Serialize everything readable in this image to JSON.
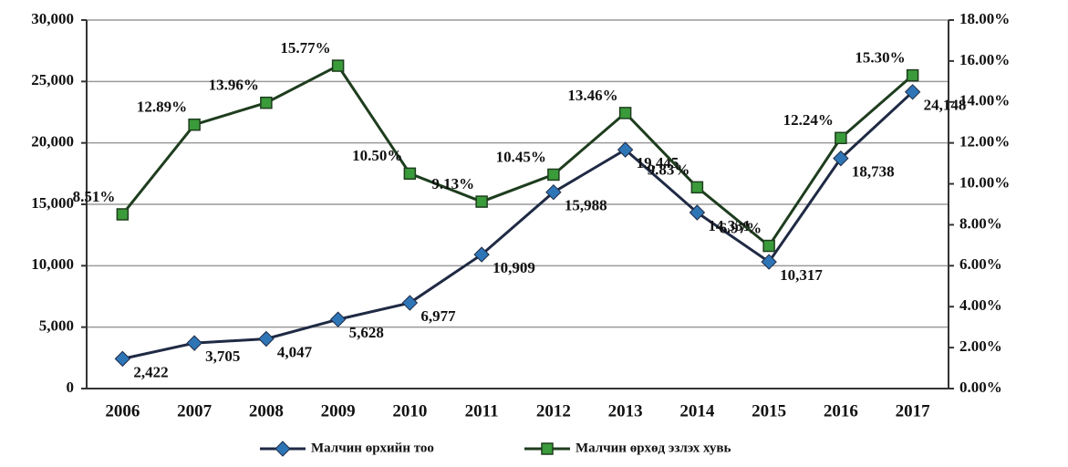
{
  "chart_data": {
    "type": "line",
    "categories": [
      "2006",
      "2007",
      "2008",
      "2009",
      "2010",
      "2011",
      "2012",
      "2013",
      "2014",
      "2015",
      "2016",
      "2017"
    ],
    "series": [
      {
        "name": "Малчин өрхийн тоо",
        "color": "#1f2a44",
        "marker_color": "#2e75b6",
        "marker": "diamond",
        "values": [
          2422,
          3705,
          4047,
          5628,
          6977,
          10909,
          15988,
          19445,
          14331,
          10317,
          18738,
          24148
        ],
        "value_labels": [
          "2,422",
          "3,705",
          "4,047",
          "5,628",
          "6,977",
          "10,909",
          "15,988",
          "19,445",
          "14,331",
          "10,317",
          "18,738",
          "24,148"
        ]
      },
      {
        "name": "Малчин өрхөд эзлэх хувь",
        "color": "#1e3d1e",
        "marker_color": "#3a9b3a",
        "marker": "square",
        "axis": "y2",
        "values": [
          8.51,
          12.89,
          13.96,
          15.77,
          10.5,
          9.13,
          10.45,
          13.46,
          9.83,
          6.97,
          12.24,
          15.3
        ],
        "value_labels": [
          "8.51%",
          "12.89%",
          "13.96%",
          "15.77%",
          "10.50%",
          "9.13%",
          "10.45%",
          "13.46%",
          "9.83%",
          "6.97%",
          "12.24%",
          "15.30%"
        ]
      }
    ],
    "ylim": [
      0,
      30000
    ],
    "yticks": [
      0,
      {
        "value": 5000,
        "label": "5,000"
      },
      {
        "value": 10000,
        "label": "10,000"
      },
      {
        "value": 15000,
        "label": "15,000"
      },
      {
        "value": 20000,
        "label": "20,000"
      },
      {
        "value": 25000,
        "label": "25,000"
      },
      {
        "value": 30000,
        "label": "30,000"
      }
    ],
    "y2lim": [
      0,
      18
    ],
    "y2ticks": [
      {
        "value": 0,
        "label": "0.00%"
      },
      {
        "value": 2,
        "label": "2.00%"
      },
      {
        "value": 4,
        "label": "4.00%"
      },
      {
        "value": 6,
        "label": "6.00%"
      },
      {
        "value": 8,
        "label": "8.00%"
      },
      {
        "value": 10,
        "label": "10.00%"
      },
      {
        "value": 12,
        "label": "12.00%"
      },
      {
        "value": 14,
        "label": "14.00%"
      },
      {
        "value": 16,
        "label": "16.00%"
      },
      {
        "value": 18,
        "label": "18.00%"
      }
    ],
    "grid": true,
    "legend": "bottom"
  }
}
